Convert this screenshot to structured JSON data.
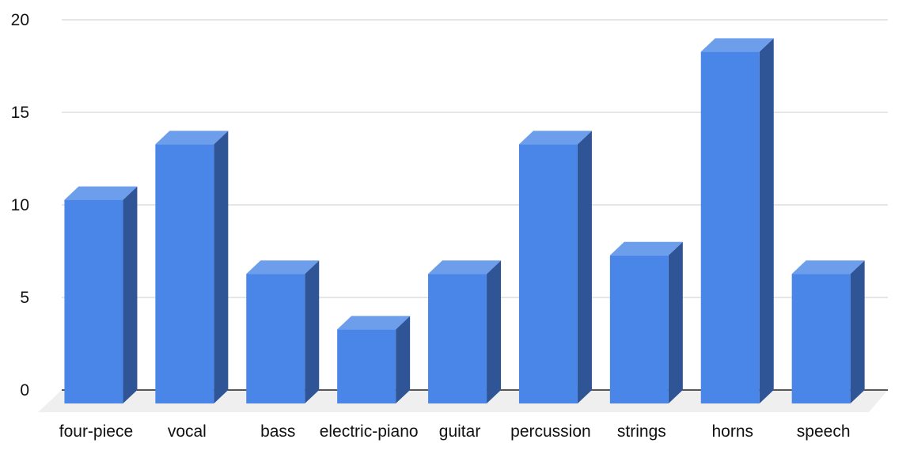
{
  "chart_data": {
    "type": "bar",
    "style": "3d",
    "categories": [
      "four-piece",
      "vocal",
      "bass",
      "electric-piano",
      "guitar",
      "percussion",
      "strings",
      "horns",
      "speech"
    ],
    "series": [
      {
        "values": [
          11,
          14,
          7,
          4,
          7,
          14,
          8,
          19,
          7
        ]
      }
    ],
    "ylim": [
      0,
      20
    ],
    "yticks": [
      "0",
      "5",
      "10",
      "15",
      "20"
    ],
    "grid": true,
    "legend": "none",
    "colors": {
      "front": "#4a86e8",
      "top": "#6d9eeb",
      "side": "#2f5597",
      "floor": "#efefef"
    }
  }
}
